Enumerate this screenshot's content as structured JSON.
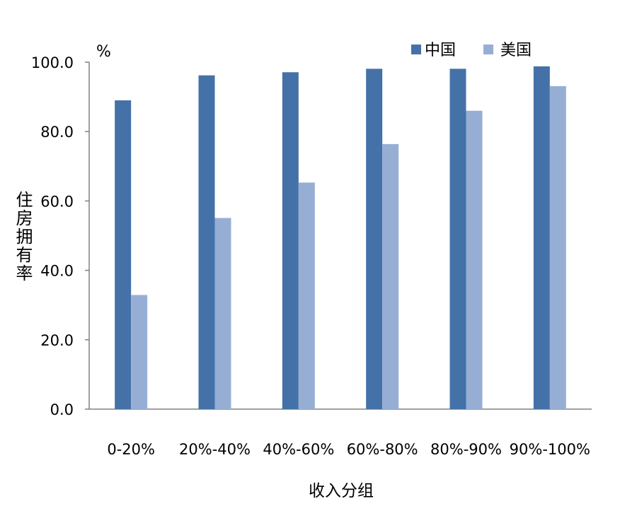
{
  "chart_data": {
    "type": "bar",
    "title": "",
    "unit_label": "%",
    "xlabel": "收入分组",
    "ylabel": "住房拥有率",
    "categories": [
      "0-20%",
      "20%-40%",
      "40%-60%",
      "60%-80%",
      "80%-90%",
      "90%-100%"
    ],
    "series": [
      {
        "name": "中国",
        "color": "#4472a8",
        "values": [
          89.0,
          96.2,
          97.1,
          98.1,
          98.1,
          98.8
        ]
      },
      {
        "name": "美国",
        "color": "#97aed4",
        "values": [
          32.9,
          55.1,
          65.3,
          76.4,
          86.0,
          93.1
        ]
      }
    ],
    "yticks": [
      "0.0",
      "20.0",
      "40.0",
      "60.0",
      "80.0",
      "100.0"
    ],
    "ylim": [
      0,
      100
    ],
    "legend_position": "top-right",
    "grid": false
  }
}
